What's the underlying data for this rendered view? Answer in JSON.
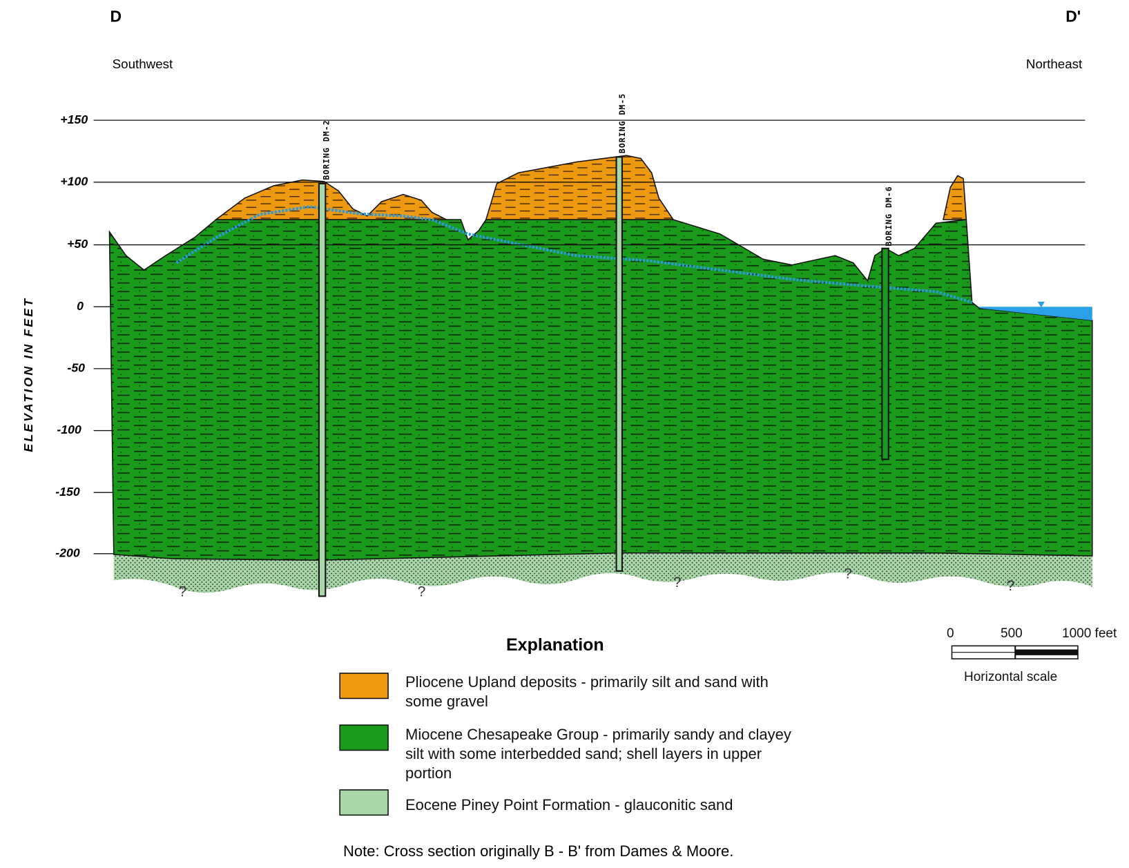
{
  "header": {
    "left_letter": "D",
    "right_letter": "D'",
    "left_direction": "Southwest",
    "right_direction": "Northeast"
  },
  "axis": {
    "label": "ELEVATION IN FEET",
    "ticks": [
      "+150",
      "+100",
      "+50",
      "0",
      "-50",
      "-100",
      "-150",
      "-200"
    ]
  },
  "borings": [
    "BORING DM-2",
    "BORING DM-5",
    "BORING DM-6"
  ],
  "unknown_marks": [
    "?",
    "?",
    "?",
    "?",
    "?"
  ],
  "explanation": {
    "title": "Explanation",
    "items": [
      "Pliocene Upland deposits - primarily silt and sand with some gravel",
      "Miocene Chesapeake Group - primarily sandy and clayey silt with some interbedded sand; shell layers in upper portion",
      "Eocene Piney Point Formation - glauconitic sand"
    ]
  },
  "scale": {
    "labels": [
      "0",
      "500",
      "1000 feet"
    ],
    "caption": "Horizontal scale"
  },
  "note": "Note: Cross section originally B - B' from Dames & Moore."
}
